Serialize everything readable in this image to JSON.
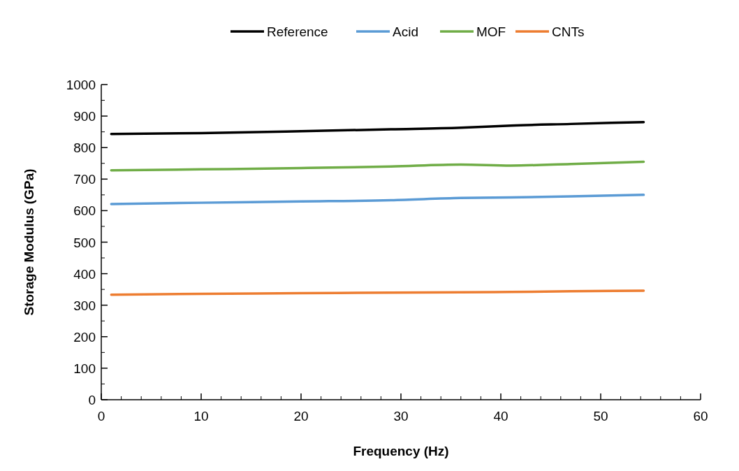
{
  "chart_data": {
    "type": "line",
    "xlabel": "Frequency (Hz)",
    "ylabel": "Storage Modulus (GPa)",
    "xlim": [
      0,
      60
    ],
    "xticks": [
      0,
      10,
      20,
      30,
      40,
      50,
      60
    ],
    "ylim": [
      0,
      1000
    ],
    "yticks": [
      0,
      100,
      200,
      300,
      400,
      500,
      600,
      700,
      800,
      900,
      1000
    ],
    "grid": false,
    "legend": "top",
    "marker": "none",
    "line_style": "solid",
    "x": [
      1,
      10,
      20,
      29,
      36,
      41,
      47,
      54.3
    ],
    "series": [
      {
        "name": "Reference",
        "color": "#000000",
        "values": [
          843,
          846,
          852,
          858,
          863,
          870,
          875,
          881
        ]
      },
      {
        "name": "Acid",
        "color": "#5b9bd5",
        "values": [
          621,
          625,
          629,
          633,
          640,
          642,
          645,
          650
        ]
      },
      {
        "name": "MOF",
        "color": "#70ad47",
        "values": [
          728,
          731,
          735,
          740,
          746,
          743,
          748,
          755
        ]
      },
      {
        "name": "CNTs",
        "color": "#ed7d31",
        "values": [
          333,
          336,
          338,
          340,
          341,
          342,
          344,
          346
        ]
      }
    ]
  }
}
